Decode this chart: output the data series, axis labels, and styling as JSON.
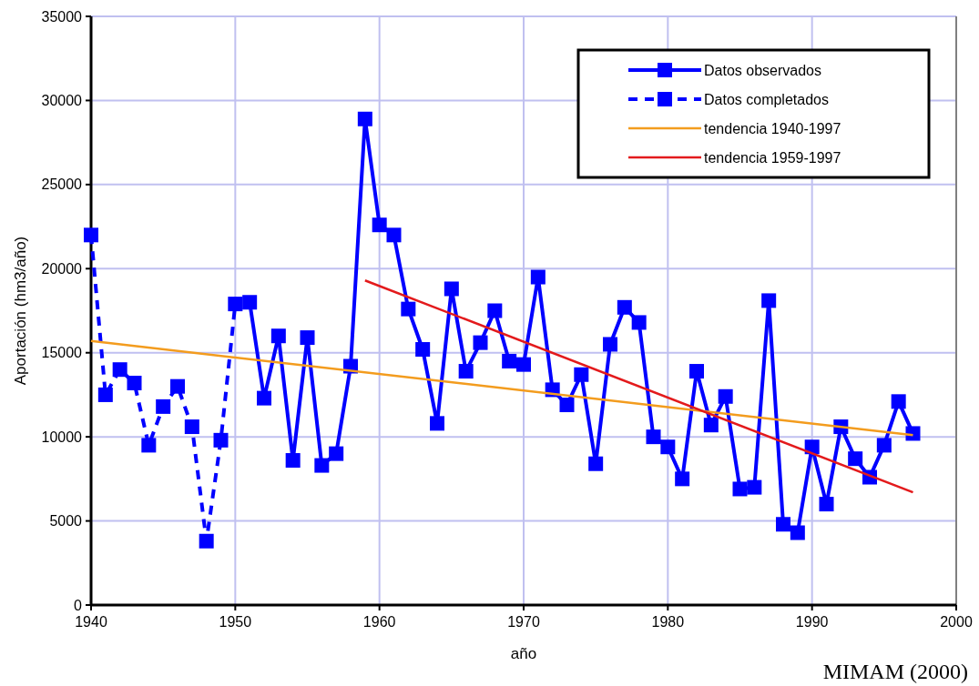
{
  "chart_data": {
    "type": "line",
    "xlabel": "año",
    "ylabel": "Aportación (hm3/año)",
    "xlim": [
      1940,
      2000
    ],
    "xticks": [
      1940,
      1950,
      1960,
      1970,
      1980,
      1990,
      2000
    ],
    "ylim": [
      0,
      35000
    ],
    "yticks": [
      0,
      5000,
      10000,
      15000,
      20000,
      25000,
      30000,
      35000
    ],
    "grid": true,
    "legend": "top right",
    "annotations": [
      "MIMAM (2000)"
    ],
    "series": [
      {
        "name": "Datos observados",
        "color": "#0000ff",
        "marker": "square",
        "line_style": "solid",
        "x": [
          1951,
          1952,
          1953,
          1954,
          1955,
          1956,
          1957,
          1958,
          1959,
          1960,
          1961,
          1962,
          1963,
          1964,
          1965,
          1966,
          1967,
          1968,
          1969,
          1970,
          1971,
          1972,
          1973,
          1974,
          1975,
          1976,
          1977,
          1978,
          1979,
          1980,
          1981,
          1982,
          1983,
          1984,
          1985,
          1986,
          1987,
          1988,
          1989,
          1990,
          1991,
          1992,
          1993,
          1994,
          1995,
          1996,
          1997
        ],
        "values": [
          18000,
          12300,
          16000,
          8600,
          15900,
          8300,
          9000,
          14200,
          28900,
          22600,
          22000,
          17600,
          15200,
          10800,
          18800,
          13900,
          15600,
          17500,
          14500,
          14300,
          19500,
          12800,
          11900,
          13700,
          8400,
          15500,
          17700,
          16800,
          10000,
          9400,
          7500,
          13900,
          10700,
          12400,
          6900,
          7000,
          18100,
          4800,
          4300,
          9400,
          6000,
          10600,
          8700,
          7600,
          9500,
          12100,
          10200
        ]
      },
      {
        "name": "Datos completados",
        "color": "#0000ff",
        "marker": "square",
        "line_style": "dashed",
        "x": [
          1940,
          1941,
          1942,
          1943,
          1944,
          1945,
          1946,
          1947,
          1948,
          1949,
          1950
        ],
        "values": [
          22000,
          12500,
          14000,
          13200,
          9500,
          11800,
          13000,
          10600,
          3800,
          9800,
          17900
        ]
      },
      {
        "name": "tendencia 1940-1997",
        "color": "#f39c1e",
        "marker": "none",
        "line_style": "solid",
        "x": [
          1940,
          1997
        ],
        "values": [
          15700,
          10100
        ]
      },
      {
        "name": "tendencia 1959-1997",
        "color": "#e31a1c",
        "marker": "none",
        "line_style": "solid",
        "x": [
          1959,
          1997
        ],
        "values": [
          19300,
          6700
        ]
      }
    ]
  }
}
